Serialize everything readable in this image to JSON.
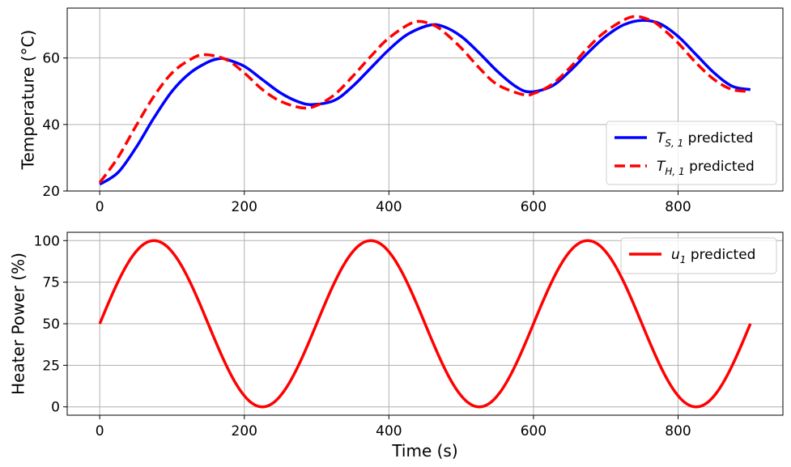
{
  "chart_data": [
    {
      "type": "line",
      "xlabel": "",
      "ylabel": "Temperature (°C)",
      "xlim": [
        -45,
        945
      ],
      "ylim": [
        20,
        75
      ],
      "xticks": [
        0,
        200,
        400,
        600,
        800
      ],
      "yticks": [
        20,
        40,
        60
      ],
      "xtick_labels": [
        "0",
        "200",
        "400",
        "600",
        "800"
      ],
      "ytick_labels": [
        "20",
        "40",
        "60"
      ],
      "grid": true,
      "legend_position": "lower-right",
      "series": [
        {
          "name": "T_S,1 predicted",
          "legend_main": "T",
          "legend_sub": "S, 1",
          "legend_suffix": " predicted",
          "color": "#0000ff",
          "style": "solid",
          "x": [
            0,
            25,
            50,
            75,
            100,
            125,
            150,
            165,
            175,
            200,
            225,
            250,
            275,
            295,
            325,
            350,
            375,
            400,
            425,
            455,
            475,
            500,
            525,
            550,
            575,
            595,
            625,
            650,
            675,
            700,
            725,
            750,
            775,
            800,
            825,
            850,
            875,
            900
          ],
          "y": [
            22,
            25.5,
            33,
            42,
            50,
            55.5,
            58.8,
            59.8,
            59.6,
            57.5,
            53.5,
            49.5,
            46.8,
            46,
            47.3,
            51.5,
            57,
            62.5,
            67,
            69.8,
            69.5,
            66.5,
            61.5,
            56,
            51.5,
            49.8,
            51.5,
            56,
            61.5,
            66.5,
            70,
            71.3,
            70.3,
            66.5,
            61,
            55.5,
            51.5,
            50.5
          ]
        },
        {
          "name": "T_H,1 predicted",
          "legend_main": "T",
          "legend_sub": "H, 1",
          "legend_suffix": " predicted",
          "color": "#ff0000",
          "style": "dashed",
          "x": [
            0,
            25,
            50,
            75,
            100,
            125,
            145,
            175,
            200,
            225,
            250,
            280,
            300,
            325,
            350,
            375,
            400,
            435,
            460,
            475,
            500,
            525,
            550,
            585,
            600,
            625,
            650,
            675,
            700,
            735,
            760,
            775,
            800,
            825,
            850,
            875,
            900
          ],
          "y": [
            22.5,
            30,
            39.5,
            48.5,
            55.5,
            59.5,
            61,
            59.5,
            55.5,
            50.5,
            47,
            45,
            45.7,
            49,
            54.5,
            60.5,
            66,
            70.8,
            70,
            68,
            63,
            57,
            52,
            49,
            49.3,
            52,
            57,
            63,
            68,
            72.3,
            71.5,
            69.5,
            64.5,
            58.5,
            53.5,
            50.5,
            50
          ]
        }
      ]
    },
    {
      "type": "line",
      "xlabel": "Time (s)",
      "ylabel": "Heater Power (%)",
      "xlim": [
        -45,
        945
      ],
      "ylim": [
        -5,
        105
      ],
      "xticks": [
        0,
        200,
        400,
        600,
        800
      ],
      "yticks": [
        0,
        25,
        50,
        75,
        100
      ],
      "xtick_labels": [
        "0",
        "200",
        "400",
        "600",
        "800"
      ],
      "ytick_labels": [
        "0",
        "25",
        "50",
        "75",
        "100"
      ],
      "grid": true,
      "legend_position": "top-right",
      "series": [
        {
          "name": "u_1 predicted",
          "legend_main": "u",
          "legend_sub": "1",
          "legend_suffix": " predicted",
          "color": "#ff0000",
          "style": "solid",
          "function": "50 + 50*sin(2*pi*t/300)",
          "x_range": [
            0,
            900
          ]
        }
      ]
    }
  ]
}
